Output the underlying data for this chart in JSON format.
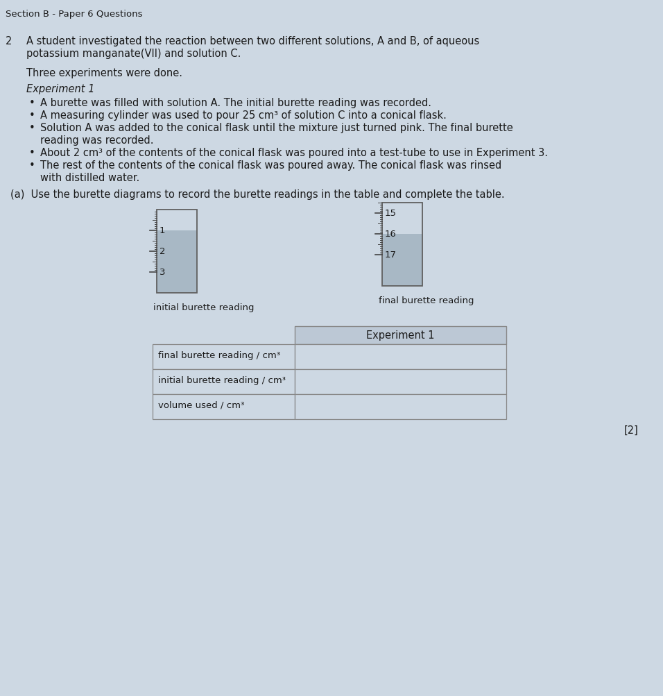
{
  "bg_color": "#cdd8e3",
  "text_color": "#1a1a1a",
  "section_title": "Section B - Paper 6 Questions",
  "question_num": "2",
  "question_intro": "A student investigated the reaction between two different solutions, A and B, of aqueous\npotassium manganate(VII) and solution C.",
  "three_exp": "Three experiments were done.",
  "exp1_title": "Experiment 1",
  "bullet1": "A burette was filled with solution A. The initial burette reading was recorded.",
  "bullet2": "A measuring cylinder was used to pour 25 cm³ of solution C into a conical flask.",
  "bullet3a": "Solution A was added to the conical flask until the mixture just turned pink. The final burette",
  "bullet3b": "reading was recorded.",
  "bullet4": "About 2 cm³ of the contents of the conical flask was poured into a test-tube to use in Experiment 3.",
  "bullet5a": "The rest of the contents of the conical flask was poured away. The conical flask was rinsed",
  "bullet5b": "with distilled water.",
  "part_a": "(a)  Use the burette diagrams to record the burette readings in the table and complete the table.",
  "initial_label": "initial burette reading",
  "final_label": "final burette reading",
  "table_header": "Experiment 1",
  "row1": "final burette reading / cm³",
  "row2": "initial burette reading / cm³",
  "row3": "volume used / cm³",
  "mark": "[2]",
  "liquid_color": "#a8b8c5",
  "burette_border": "#606060",
  "tick_color": "#444444",
  "table_border": "#888888",
  "table_bg": "#cdd8e3",
  "header_bg": "#bcc8d5"
}
